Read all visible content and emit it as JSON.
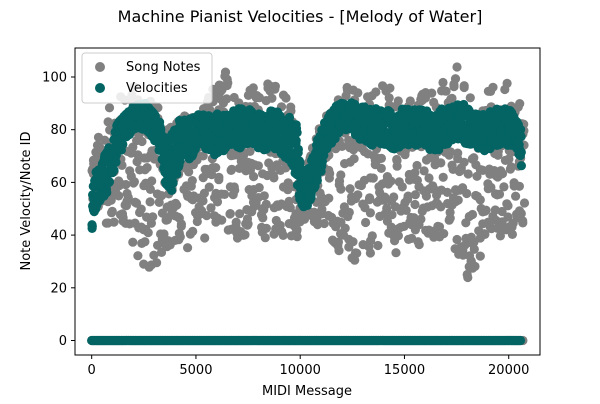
{
  "chart_data": {
    "type": "scatter",
    "title": "Machine Pianist Velocities - [Melody of Water]",
    "xlabel": "MIDI Message",
    "ylabel": "Note Velocity/Note ID",
    "xlim": [
      -800,
      21500
    ],
    "ylim": [
      -5.5,
      111
    ],
    "xticks": [
      0,
      5000,
      10000,
      15000,
      20000
    ],
    "yticks": [
      0,
      20,
      40,
      60,
      80,
      100
    ],
    "grid": false,
    "legend_position": "top-left",
    "series": [
      {
        "name": "Song Notes",
        "color": "#808080",
        "envelope": {
          "x": [
            0,
            500,
            1000,
            1500,
            2000,
            2500,
            3000,
            3500,
            4000,
            4500,
            5000,
            5500,
            6000,
            6500,
            7000,
            7500,
            8000,
            8500,
            9000,
            9500,
            10000,
            10500,
            11000,
            11500,
            12000,
            12500,
            13000,
            13500,
            14000,
            14500,
            15000,
            15500,
            16000,
            16500,
            17000,
            17500,
            18000,
            18500,
            19000,
            19500,
            20000,
            20500,
            20700
          ],
          "lower": [
            50,
            43,
            45,
            40,
            34,
            24,
            26,
            36,
            30,
            34,
            40,
            38,
            40,
            42,
            38,
            40,
            42,
            36,
            40,
            38,
            40,
            45,
            42,
            36,
            32,
            24,
            28,
            34,
            38,
            30,
            34,
            36,
            32,
            38,
            40,
            32,
            22,
            30,
            36,
            40,
            38,
            44,
            44
          ],
          "upper": [
            72,
            82,
            92,
            95,
            98,
            96,
            90,
            86,
            84,
            88,
            90,
            92,
            100,
            105,
            96,
            98,
            96,
            98,
            100,
            94,
            60,
            72,
            86,
            92,
            98,
            96,
            92,
            94,
            98,
            96,
            92,
            94,
            96,
            98,
            100,
            106,
            94,
            90,
            96,
            100,
            98,
            92,
            84
          ],
          "zero_line": true
        }
      },
      {
        "name": "Velocities",
        "color": "#046464",
        "values": {
          "x": [
            0,
            200,
            400,
            600,
            800,
            1000,
            1200,
            1400,
            1600,
            1800,
            2000,
            2200,
            2400,
            2600,
            2800,
            3000,
            3200,
            3400,
            3600,
            3800,
            4000,
            4200,
            4400,
            4600,
            4800,
            5000,
            5200,
            5400,
            5600,
            5800,
            6000,
            6200,
            6400,
            6600,
            6800,
            7000,
            7200,
            7400,
            7600,
            7800,
            8000,
            8200,
            8400,
            8600,
            8800,
            9000,
            9200,
            9400,
            9600,
            9800,
            10000,
            10200,
            10400,
            10600,
            10800,
            11000,
            11200,
            11400,
            11600,
            11800,
            12000,
            12200,
            12400,
            12600,
            12800,
            13000,
            13200,
            13400,
            13600,
            13800,
            14000,
            14200,
            14400,
            14600,
            14800,
            15000,
            15200,
            15400,
            15600,
            15800,
            16000,
            16200,
            16400,
            16600,
            16800,
            17000,
            17200,
            17400,
            17600,
            17800,
            18000,
            18200,
            18400,
            18600,
            18800,
            19000,
            19200,
            19400,
            19600,
            19800,
            20000,
            20200,
            20400,
            20600
          ],
          "low": [
            40,
            50,
            52,
            54,
            58,
            62,
            68,
            72,
            76,
            78,
            80,
            80,
            80,
            80,
            78,
            76,
            72,
            64,
            58,
            56,
            60,
            64,
            66,
            68,
            70,
            72,
            74,
            72,
            72,
            70,
            70,
            72,
            72,
            74,
            72,
            72,
            74,
            74,
            74,
            74,
            72,
            72,
            72,
            74,
            72,
            70,
            70,
            68,
            66,
            62,
            52,
            50,
            52,
            56,
            60,
            64,
            72,
            74,
            76,
            78,
            80,
            80,
            80,
            78,
            76,
            76,
            74,
            74,
            74,
            74,
            74,
            74,
            72,
            72,
            74,
            74,
            74,
            74,
            74,
            74,
            74,
            72,
            72,
            72,
            74,
            74,
            76,
            76,
            76,
            76,
            74,
            74,
            72,
            72,
            72,
            72,
            74,
            74,
            74,
            74,
            74,
            74,
            70,
            64
          ],
          "high": [
            58,
            64,
            66,
            70,
            74,
            78,
            82,
            84,
            86,
            88,
            89,
            90,
            90,
            90,
            88,
            86,
            84,
            80,
            76,
            78,
            82,
            84,
            84,
            84,
            86,
            86,
            86,
            86,
            86,
            86,
            86,
            86,
            86,
            86,
            88,
            88,
            88,
            88,
            88,
            86,
            86,
            86,
            86,
            88,
            88,
            86,
            86,
            86,
            84,
            82,
            66,
            62,
            66,
            70,
            76,
            80,
            84,
            86,
            88,
            90,
            90,
            91,
            91,
            90,
            90,
            90,
            88,
            88,
            88,
            88,
            88,
            88,
            86,
            86,
            88,
            88,
            88,
            88,
            88,
            88,
            88,
            86,
            86,
            88,
            88,
            88,
            90,
            90,
            90,
            90,
            88,
            88,
            86,
            86,
            86,
            86,
            88,
            88,
            88,
            88,
            88,
            88,
            84,
            80
          ]
        },
        "zero_line": true
      }
    ]
  }
}
